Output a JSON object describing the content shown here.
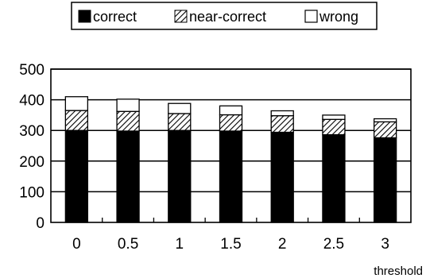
{
  "chart_data": {
    "type": "bar",
    "stacked": true,
    "title": "",
    "xlabel": "threshold",
    "ylabel": "",
    "categories": [
      "0",
      "0.5",
      "1",
      "1.5",
      "2",
      "2.5",
      "3"
    ],
    "ylim": [
      0,
      500
    ],
    "yticks": [
      "0",
      "100",
      "200",
      "300",
      "400",
      "500"
    ],
    "grid": "horizontal",
    "legend_position": "top",
    "series": [
      {
        "name": "correct",
        "values": [
          300,
          298,
          300,
          298,
          294,
          286,
          276
        ],
        "color": "#000000",
        "pattern": "solid"
      },
      {
        "name": "near-correct",
        "values": [
          65,
          64,
          55,
          53,
          54,
          50,
          52
        ],
        "color": "#000000",
        "pattern": "hatched"
      },
      {
        "name": "wrong",
        "values": [
          45,
          40,
          33,
          29,
          16,
          14,
          10
        ],
        "color": "#ffffff",
        "pattern": "empty"
      }
    ]
  }
}
